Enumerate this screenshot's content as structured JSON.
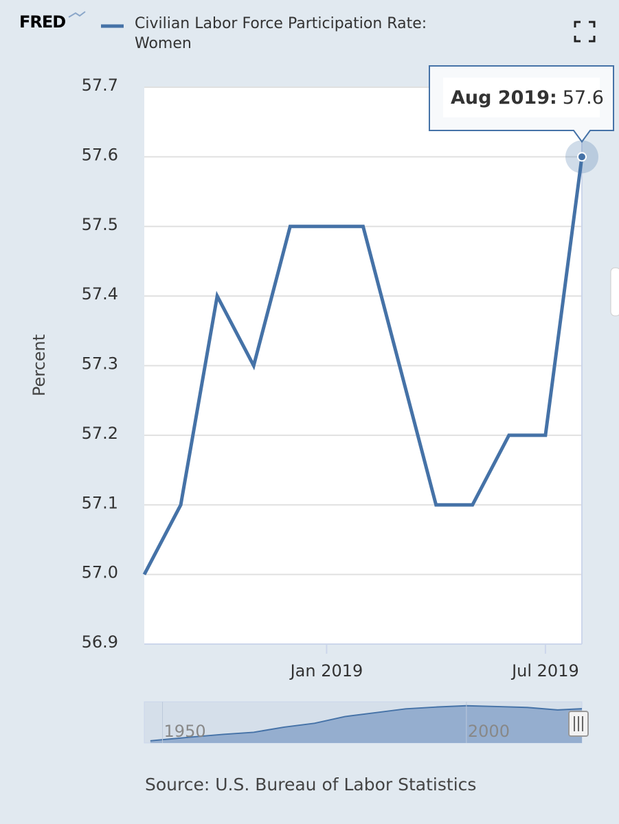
{
  "chart_data": {
    "type": "line",
    "logo": "FRED",
    "title": "Civilian Labor Force Participation Rate: Women",
    "ylabel": "Percent",
    "source": "Source: U.S. Bureau of Labor Statistics",
    "x": [
      "2018-08",
      "2018-09",
      "2018-10",
      "2018-11",
      "2018-12",
      "2019-01",
      "2019-02",
      "2019-03",
      "2019-04",
      "2019-05",
      "2019-06",
      "2019-07",
      "2019-08"
    ],
    "series": [
      {
        "name": "Civilian Labor Force Participation Rate: Women",
        "color": "#4572a7",
        "values": [
          57.0,
          57.1,
          57.4,
          57.3,
          57.5,
          57.5,
          57.5,
          57.3,
          57.1,
          57.1,
          57.2,
          57.2,
          57.6
        ]
      }
    ],
    "xlim": [
      "2018-08",
      "2019-08"
    ],
    "xticks": [
      {
        "value": "2019-01",
        "label": "Jan 2019"
      },
      {
        "value": "2019-07",
        "label": "Jul 2019"
      }
    ],
    "ylim": [
      56.9,
      57.7
    ],
    "yticks": [
      56.9,
      {
        "value": 57,
        "label": "57.0"
      },
      57.1,
      57.2,
      57.3,
      57.4,
      57.5,
      57.6,
      57.7
    ],
    "grid": true,
    "tooltip": {
      "label": "Aug 2019:",
      "index": 12
    },
    "navigator": {
      "x": [
        1948,
        1955,
        1960,
        1965,
        1970,
        1975,
        1980,
        1985,
        1990,
        1995,
        2000,
        2005,
        2010,
        2015,
        2019
      ],
      "values": [
        32.7,
        35.7,
        37.7,
        39.3,
        43.3,
        46.3,
        51.5,
        54.5,
        57.5,
        58.9,
        59.9,
        59.3,
        58.6,
        56.7,
        57.6
      ],
      "xlim": [
        1947,
        2019
      ],
      "ylim": [
        31,
        63
      ],
      "xticks": [
        1950,
        2000
      ]
    }
  }
}
